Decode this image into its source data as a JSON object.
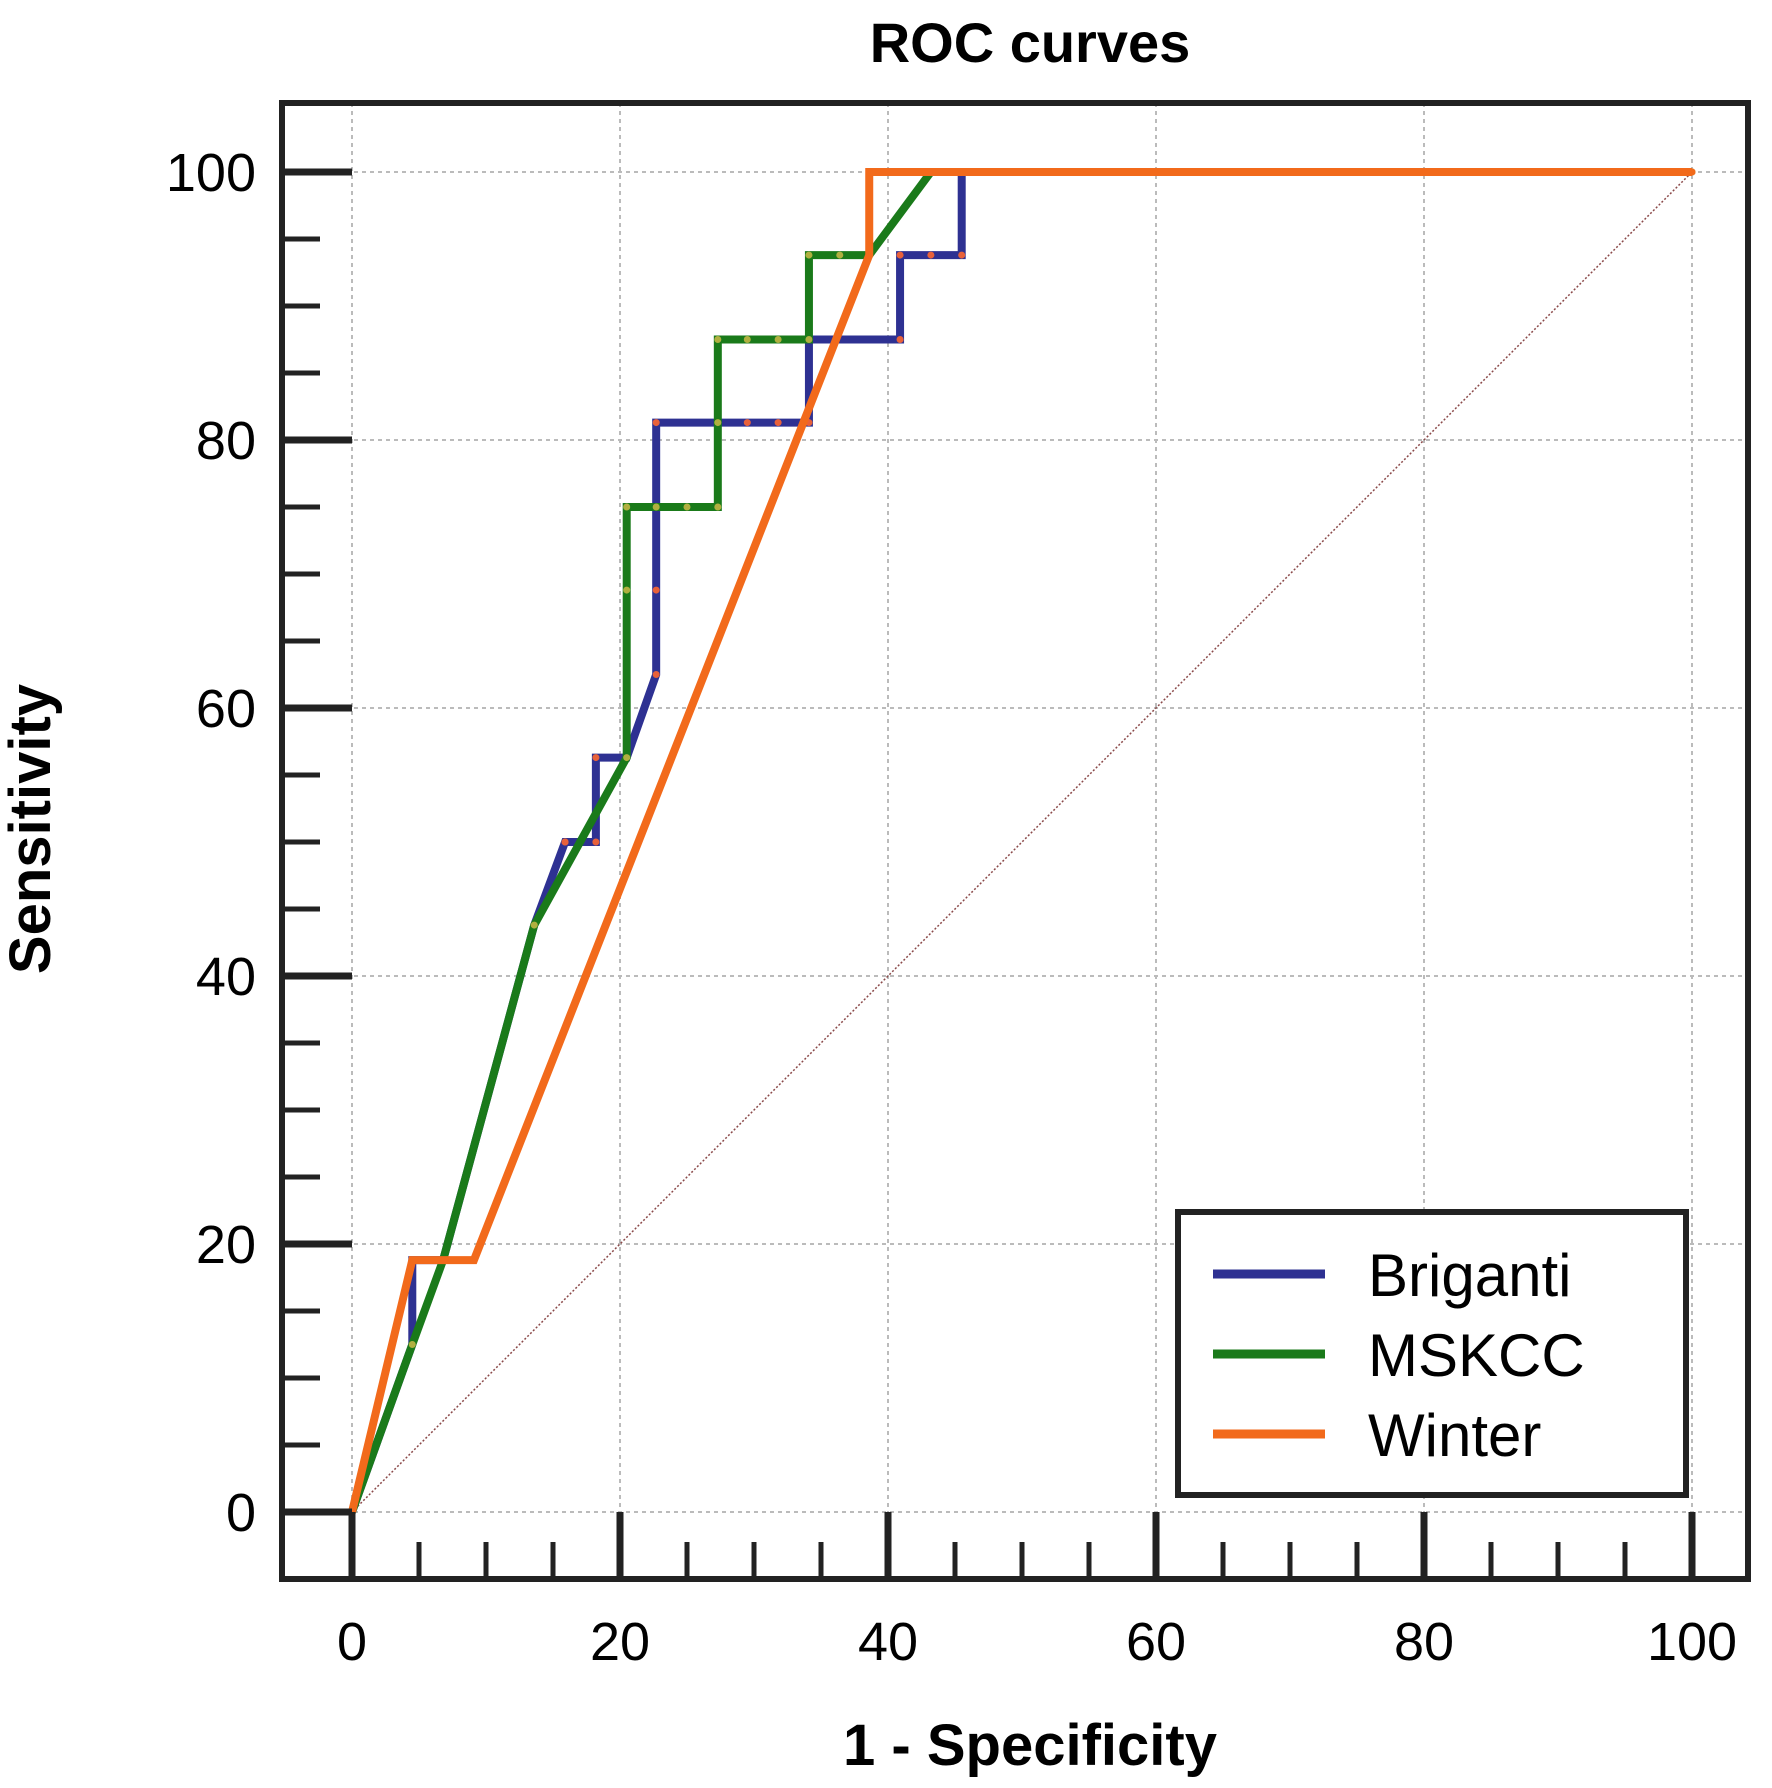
{
  "chart_data": {
    "type": "line",
    "title": "ROC curves",
    "xlabel": "1 - Specificity",
    "ylabel": "Sensitivity",
    "xlim": [
      0,
      100
    ],
    "ylim": [
      0,
      100
    ],
    "xticks": [
      0,
      20,
      40,
      60,
      80,
      100
    ],
    "yticks": [
      0,
      20,
      40,
      60,
      80,
      100
    ],
    "grid": true,
    "legend_position": "bottom-right",
    "reference_line": {
      "name": "chance",
      "x": [
        0,
        100
      ],
      "y": [
        0,
        100
      ],
      "color": "#8b4a4a"
    },
    "series": [
      {
        "name": "Briganti",
        "color": "#2e3192",
        "marker_color": "#e8613a",
        "x": [
          0,
          4.5,
          4.5,
          6.8,
          13.6,
          15.9,
          15.9,
          18.2,
          18.2,
          20.5,
          22.7,
          22.7,
          22.7,
          27.3,
          29.5,
          31.8,
          34.1,
          34.1,
          40.9,
          40.9,
          43.2,
          45.5,
          45.5,
          47.7,
          50,
          52.3,
          61.4,
          68.2,
          70.5,
          79.5,
          93.2,
          95.5,
          100
        ],
        "y": [
          0,
          12.5,
          18.8,
          18.8,
          43.8,
          50,
          50,
          50,
          56.3,
          56.3,
          62.5,
          68.8,
          81.3,
          81.3,
          81.3,
          81.3,
          81.3,
          87.5,
          87.5,
          93.8,
          93.8,
          93.8,
          100,
          100,
          100,
          100,
          100,
          100,
          100,
          100,
          100,
          100,
          100
        ]
      },
      {
        "name": "MSKCC",
        "color": "#1a7a1a",
        "marker_color": "#b0b040",
        "x": [
          0,
          4.5,
          6.8,
          13.6,
          20.5,
          20.5,
          20.5,
          22.7,
          25,
          27.3,
          27.3,
          27.3,
          29.5,
          31.8,
          34.1,
          34.1,
          36.4,
          38.6,
          43.2,
          47.7,
          50,
          52.3,
          61.4,
          68.2,
          70.5,
          79.5,
          93.2,
          95.5,
          100
        ],
        "y": [
          0,
          12.5,
          18.8,
          43.8,
          56.3,
          68.8,
          75,
          75,
          75,
          75,
          81.3,
          87.5,
          87.5,
          87.5,
          87.5,
          93.8,
          93.8,
          93.8,
          100,
          100,
          100,
          100,
          100,
          100,
          100,
          100,
          100,
          100,
          100
        ]
      },
      {
        "name": "Winter",
        "color": "#f26a1b",
        "marker_color": "#f26a1b",
        "x": [
          0,
          4.5,
          9.1,
          38.6,
          38.6,
          100
        ],
        "y": [
          0,
          18.8,
          18.8,
          93.8,
          100,
          100
        ]
      }
    ]
  }
}
